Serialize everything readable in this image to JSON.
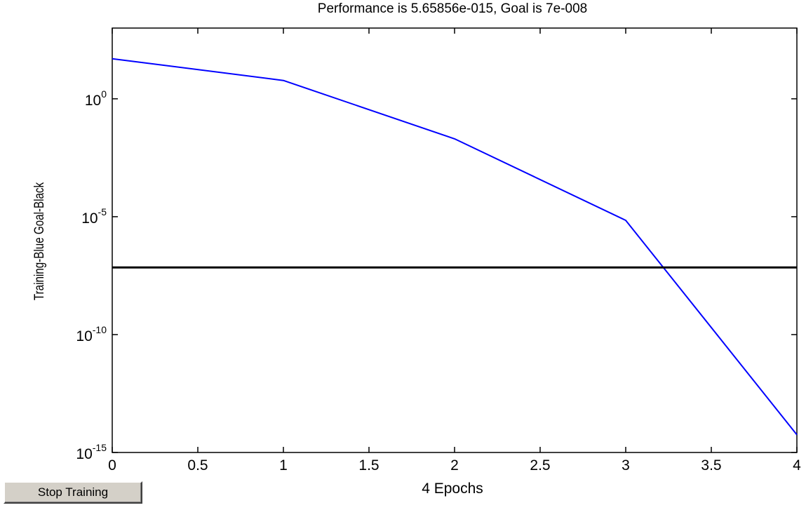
{
  "chart_data": {
    "type": "line",
    "title": "Performance is  5.65856e-015,  Goal is  7e-008",
    "xlabel": "4 Epochs",
    "ylabel": "Training-Blue  Goal-Black",
    "xlim": [
      0,
      4
    ],
    "ylim": [
      1e-15,
      1000.0
    ],
    "yscale": "log",
    "xticks": [
      0,
      0.5,
      1,
      1.5,
      2,
      2.5,
      3,
      3.5,
      4
    ],
    "xtick_labels": [
      "0",
      "0.5",
      "1",
      "1.5",
      "2",
      "2.5",
      "3",
      "3.5",
      "4"
    ],
    "yticks": [
      {
        "value": 1,
        "base": "10",
        "exp": "0"
      },
      {
        "value": 1e-05,
        "base": "10",
        "exp": "-5"
      },
      {
        "value": 1e-10,
        "base": "10",
        "exp": "-10"
      },
      {
        "value": 1e-15,
        "base": "10",
        "exp": "-15"
      }
    ],
    "grid": false,
    "series": [
      {
        "color": "#0000ff",
        "x": [
          0,
          1,
          2,
          3,
          4
        ],
        "y": [
          50,
          6,
          0.02,
          7e-06,
          5.65856e-15
        ]
      },
      {
        "color": "#000000",
        "x": [
          0,
          4
        ],
        "y": [
          7e-08,
          7e-08
        ]
      }
    ]
  },
  "controls": {
    "stop_label": "Stop Training"
  }
}
